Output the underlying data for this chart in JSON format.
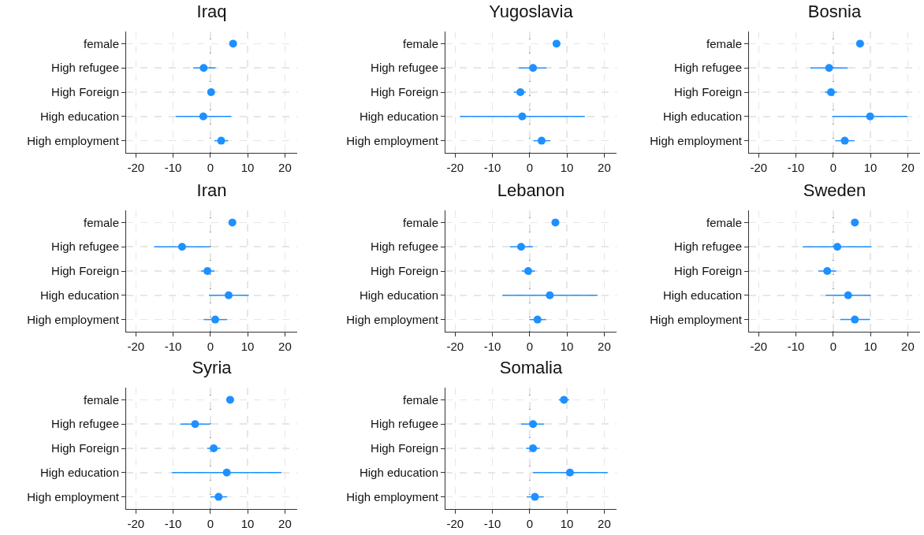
{
  "chart_data": [
    {
      "type": "scatter",
      "title": "Iraq",
      "orientation": "horizontal",
      "categories": [
        "female",
        "High refugee",
        "High Foreign",
        "High education",
        "High employment"
      ],
      "color": "#1e90ff",
      "marker": "circle",
      "values": [
        6.1,
        -1.8,
        0.2,
        -1.9,
        2.9
      ],
      "errors": [
        [
          5.5,
          6.7
        ],
        [
          -4.6,
          1.4
        ],
        [
          -0.7,
          1.1
        ],
        [
          -9.3,
          5.6
        ],
        [
          1.1,
          4.8
        ]
      ],
      "xlim": [
        -22.6,
        23.3
      ],
      "xticks": [
        -20,
        -10,
        0,
        10,
        20
      ],
      "grid": true,
      "ref_lines": [
        {
          "axis": "x",
          "value": 0,
          "color": "#555555",
          "line_style": "dashed"
        }
      ]
    },
    {
      "type": "scatter",
      "title": "Yugoslavia",
      "orientation": "horizontal",
      "categories": [
        "female",
        "High refugee",
        "High Foreign",
        "High education",
        "High employment"
      ],
      "color": "#1e90ff",
      "marker": "circle",
      "values": [
        7.2,
        0.9,
        -2.5,
        -2.0,
        3.2
      ],
      "errors": [
        [
          6.3,
          8.1
        ],
        [
          -2.9,
          4.5
        ],
        [
          -4.3,
          -1.0
        ],
        [
          -18.7,
          14.8
        ],
        [
          1.0,
          5.5
        ]
      ],
      "xlim": [
        -22.6,
        23.3
      ],
      "xticks": [
        -20,
        -10,
        0,
        10,
        20
      ],
      "grid": true,
      "ref_lines": [
        {
          "axis": "x",
          "value": 0,
          "color": "#555555",
          "line_style": "dashed"
        }
      ]
    },
    {
      "type": "scatter",
      "title": "Bosnia",
      "orientation": "horizontal",
      "categories": [
        "female",
        "High refugee",
        "High Foreign",
        "High education",
        "High employment"
      ],
      "color": "#1e90ff",
      "marker": "circle",
      "values": [
        7.2,
        -1.1,
        -0.6,
        9.9,
        3.1
      ],
      "errors": [
        [
          6.5,
          7.9
        ],
        [
          -6.1,
          3.9
        ],
        [
          -2.2,
          1.0
        ],
        [
          -0.3,
          19.9
        ],
        [
          0.6,
          5.7
        ]
      ],
      "xlim": [
        -22.6,
        23.3
      ],
      "xticks": [
        -20,
        -10,
        0,
        10,
        20
      ],
      "grid": true,
      "ref_lines": [
        {
          "axis": "x",
          "value": 0,
          "color": "#555555",
          "line_style": "dashed"
        }
      ]
    },
    {
      "type": "scatter",
      "title": "Iran",
      "orientation": "horizontal",
      "categories": [
        "female",
        "High refugee",
        "High Foreign",
        "High education",
        "High employment"
      ],
      "color": "#1e90ff",
      "marker": "circle",
      "values": [
        5.9,
        -7.6,
        -0.8,
        4.9,
        1.3
      ],
      "errors": [
        [
          5.3,
          6.5
        ],
        [
          -15.1,
          0.0
        ],
        [
          -2.5,
          1.1
        ],
        [
          -0.4,
          10.3
        ],
        [
          -1.8,
          4.5
        ]
      ],
      "xlim": [
        -22.6,
        23.3
      ],
      "xticks": [
        -20,
        -10,
        0,
        10,
        20
      ],
      "grid": true,
      "ref_lines": [
        {
          "axis": "x",
          "value": 0,
          "color": "#555555",
          "line_style": "dashed"
        }
      ]
    },
    {
      "type": "scatter",
      "title": "Lebanon",
      "orientation": "horizontal",
      "categories": [
        "female",
        "High refugee",
        "High Foreign",
        "High education",
        "High employment"
      ],
      "color": "#1e90ff",
      "marker": "circle",
      "values": [
        6.9,
        -2.3,
        -0.4,
        5.4,
        2.1
      ],
      "errors": [
        [
          6.0,
          7.8
        ],
        [
          -5.3,
          0.8
        ],
        [
          -2.1,
          1.4
        ],
        [
          -7.3,
          18.2
        ],
        [
          -0.1,
          4.4
        ]
      ],
      "xlim": [
        -22.6,
        23.3
      ],
      "xticks": [
        -20,
        -10,
        0,
        10,
        20
      ],
      "grid": true,
      "ref_lines": [
        {
          "axis": "x",
          "value": 0,
          "color": "#555555",
          "line_style": "dashed"
        }
      ]
    },
    {
      "type": "scatter",
      "title": "Sweden",
      "orientation": "horizontal",
      "categories": [
        "female",
        "High refugee",
        "High Foreign",
        "High education",
        "High employment"
      ],
      "color": "#1e90ff",
      "marker": "circle",
      "values": [
        5.8,
        1.1,
        -1.6,
        4.0,
        5.8
      ],
      "errors": [
        [
          4.9,
          6.9
        ],
        [
          -8.2,
          10.3
        ],
        [
          -4.0,
          0.8
        ],
        [
          -2.0,
          10.1
        ],
        [
          1.9,
          9.9
        ]
      ],
      "xlim": [
        -22.6,
        23.3
      ],
      "xticks": [
        -20,
        -10,
        0,
        10,
        20
      ],
      "grid": true,
      "ref_lines": [
        {
          "axis": "x",
          "value": 0,
          "color": "#555555",
          "line_style": "dashed"
        }
      ]
    },
    {
      "type": "scatter",
      "title": "Syria",
      "orientation": "horizontal",
      "categories": [
        "female",
        "High refugee",
        "High Foreign",
        "High education",
        "High employment"
      ],
      "color": "#1e90ff",
      "marker": "circle",
      "values": [
        5.3,
        -4.1,
        0.9,
        4.4,
        2.2
      ],
      "errors": [
        [
          4.3,
          6.3
        ],
        [
          -8.1,
          0.0
        ],
        [
          -0.9,
          2.7
        ],
        [
          -10.3,
          19.1
        ],
        [
          0.0,
          4.5
        ]
      ],
      "xlim": [
        -22.6,
        23.3
      ],
      "xticks": [
        -20,
        -10,
        0,
        10,
        20
      ],
      "grid": true,
      "ref_lines": [
        {
          "axis": "x",
          "value": 0,
          "color": "#555555",
          "line_style": "dashed"
        }
      ]
    },
    {
      "type": "scatter",
      "title": "Somalia",
      "orientation": "horizontal",
      "categories": [
        "female",
        "High refugee",
        "High Foreign",
        "High education",
        "High employment"
      ],
      "color": "#1e90ff",
      "marker": "circle",
      "values": [
        9.2,
        0.9,
        0.9,
        10.8,
        1.4
      ],
      "errors": [
        [
          7.8,
          10.6
        ],
        [
          -2.3,
          3.9
        ],
        [
          -1.0,
          2.7
        ],
        [
          0.9,
          20.9
        ],
        [
          -0.8,
          3.8
        ]
      ],
      "xlim": [
        -22.6,
        23.3
      ],
      "xticks": [
        -20,
        -10,
        0,
        10,
        20
      ],
      "grid": true,
      "ref_lines": [
        {
          "axis": "x",
          "value": 0,
          "color": "#555555",
          "line_style": "dashed"
        }
      ]
    }
  ]
}
